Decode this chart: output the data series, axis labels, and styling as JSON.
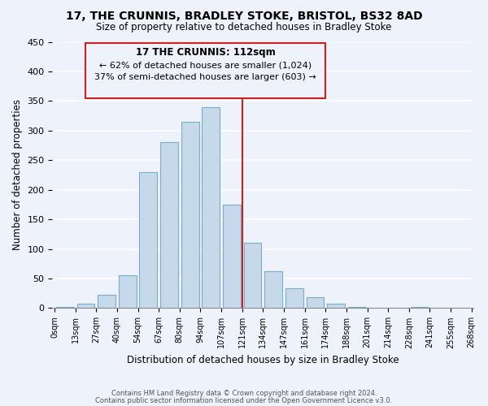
{
  "title": "17, THE CRUNNIS, BRADLEY STOKE, BRISTOL, BS32 8AD",
  "subtitle": "Size of property relative to detached houses in Bradley Stoke",
  "xlabel": "Distribution of detached houses by size in Bradley Stoke",
  "ylabel": "Number of detached properties",
  "bar_color": "#c6d9ea",
  "bar_edge_color": "#7aaec8",
  "background_color": "#eef2fb",
  "grid_color": "white",
  "annotation_box_color": "#eef2fb",
  "annotation_box_edge": "#cc2222",
  "marker_line_color": "#cc2222",
  "bin_labels": [
    "0sqm",
    "13sqm",
    "27sqm",
    "40sqm",
    "54sqm",
    "67sqm",
    "80sqm",
    "94sqm",
    "107sqm",
    "121sqm",
    "134sqm",
    "147sqm",
    "161sqm",
    "174sqm",
    "188sqm",
    "201sqm",
    "214sqm",
    "228sqm",
    "241sqm",
    "255sqm",
    "268sqm"
  ],
  "values": [
    2,
    7,
    22,
    55,
    230,
    280,
    315,
    340,
    175,
    110,
    63,
    33,
    19,
    7,
    2,
    0,
    0,
    2,
    0,
    0
  ],
  "annotation_title": "17 THE CRUNNIS: 112sqm",
  "annotation_line1": "← 62% of detached houses are smaller (1,024)",
  "annotation_line2": "37% of semi-detached houses are larger (603) →",
  "footer1": "Contains HM Land Registry data © Crown copyright and database right 2024.",
  "footer2": "Contains public sector information licensed under the Open Government Licence v3.0.",
  "ylim": [
    0,
    450
  ],
  "yticks": [
    0,
    50,
    100,
    150,
    200,
    250,
    300,
    350,
    400,
    450
  ]
}
